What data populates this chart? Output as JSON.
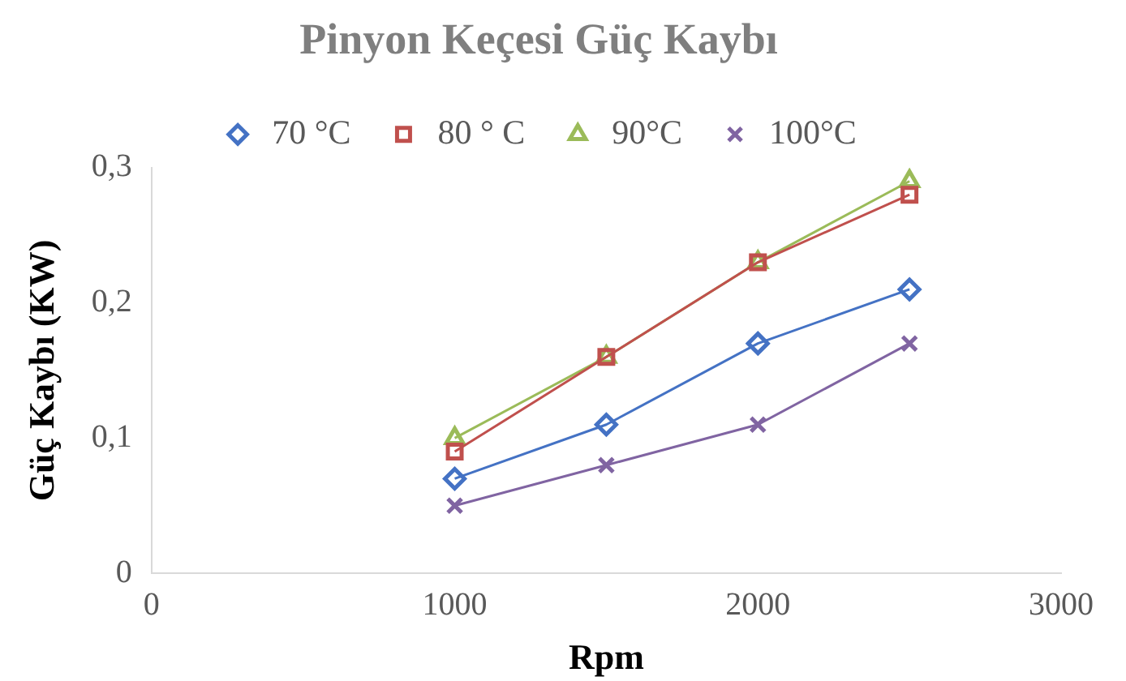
{
  "chart_data": {
    "type": "scatter",
    "title": "Pinyon Keçesi Güç Kaybı",
    "xlabel": "Rpm",
    "ylabel": "Güç Kaybı (KW)",
    "x": [
      1000,
      1500,
      2000,
      2500
    ],
    "series": [
      {
        "name": "70 °C",
        "color": "#4472c4",
        "marker": "diamond",
        "type": "line",
        "values": [
          0.07,
          0.11,
          0.17,
          0.21
        ]
      },
      {
        "name": "80 ° C",
        "color": "#c0504d",
        "marker": "square",
        "type": "line",
        "values": [
          0.09,
          0.16,
          0.23,
          0.28
        ]
      },
      {
        "name": "90°C",
        "color": "#9bbb59",
        "marker": "triangle",
        "type": "line",
        "values": [
          0.1,
          0.16,
          0.23,
          0.29
        ]
      },
      {
        "name": "100°C",
        "color": "#8064a2",
        "marker": "cross",
        "type": "line",
        "values": [
          0.05,
          0.08,
          0.11,
          0.17
        ]
      }
    ],
    "xlim": [
      0,
      3000
    ],
    "xticks": [
      0,
      1000,
      2000,
      3000
    ],
    "ylim": [
      0,
      0.3
    ],
    "yticks": [
      0,
      {
        "value": 0.1,
        "label": "0,1"
      },
      {
        "value": 0.2,
        "label": "0,2"
      },
      {
        "value": 0.3,
        "label": "0,3"
      }
    ],
    "grid": false,
    "legend": "top"
  }
}
